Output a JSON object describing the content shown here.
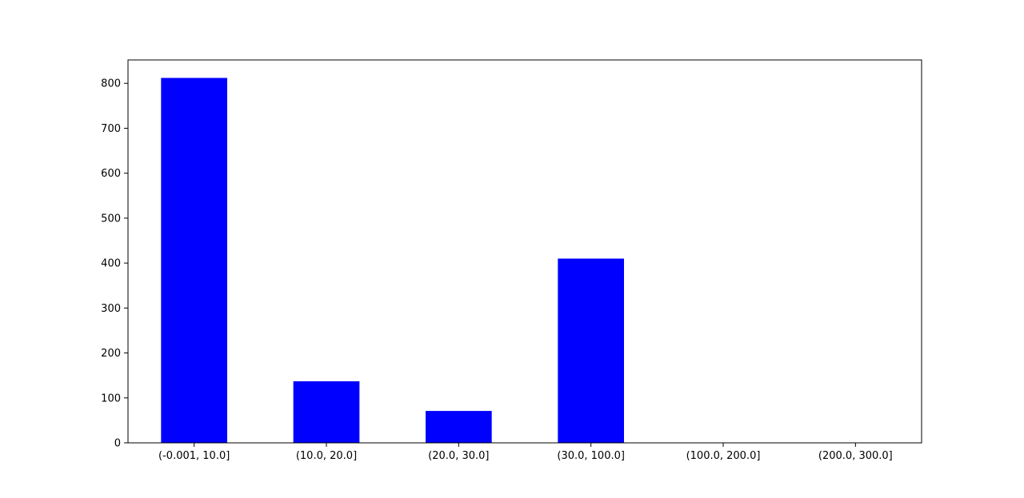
{
  "chart_data": {
    "type": "bar",
    "title": "",
    "xlabel": "",
    "ylabel": "",
    "categories": [
      "(-0.001, 10.0]",
      "(10.0, 20.0]",
      "(20.0, 30.0]",
      "(30.0, 100.0]",
      "(100.0, 200.0]",
      "(200.0, 300.0]"
    ],
    "values": [
      812,
      137,
      71,
      410,
      0,
      0
    ],
    "ylim": [
      0,
      852
    ],
    "yticks": [
      0,
      100,
      200,
      300,
      400,
      500,
      600,
      700,
      800
    ],
    "bar_color": "#0000ff",
    "grid": false,
    "legend": "none"
  }
}
